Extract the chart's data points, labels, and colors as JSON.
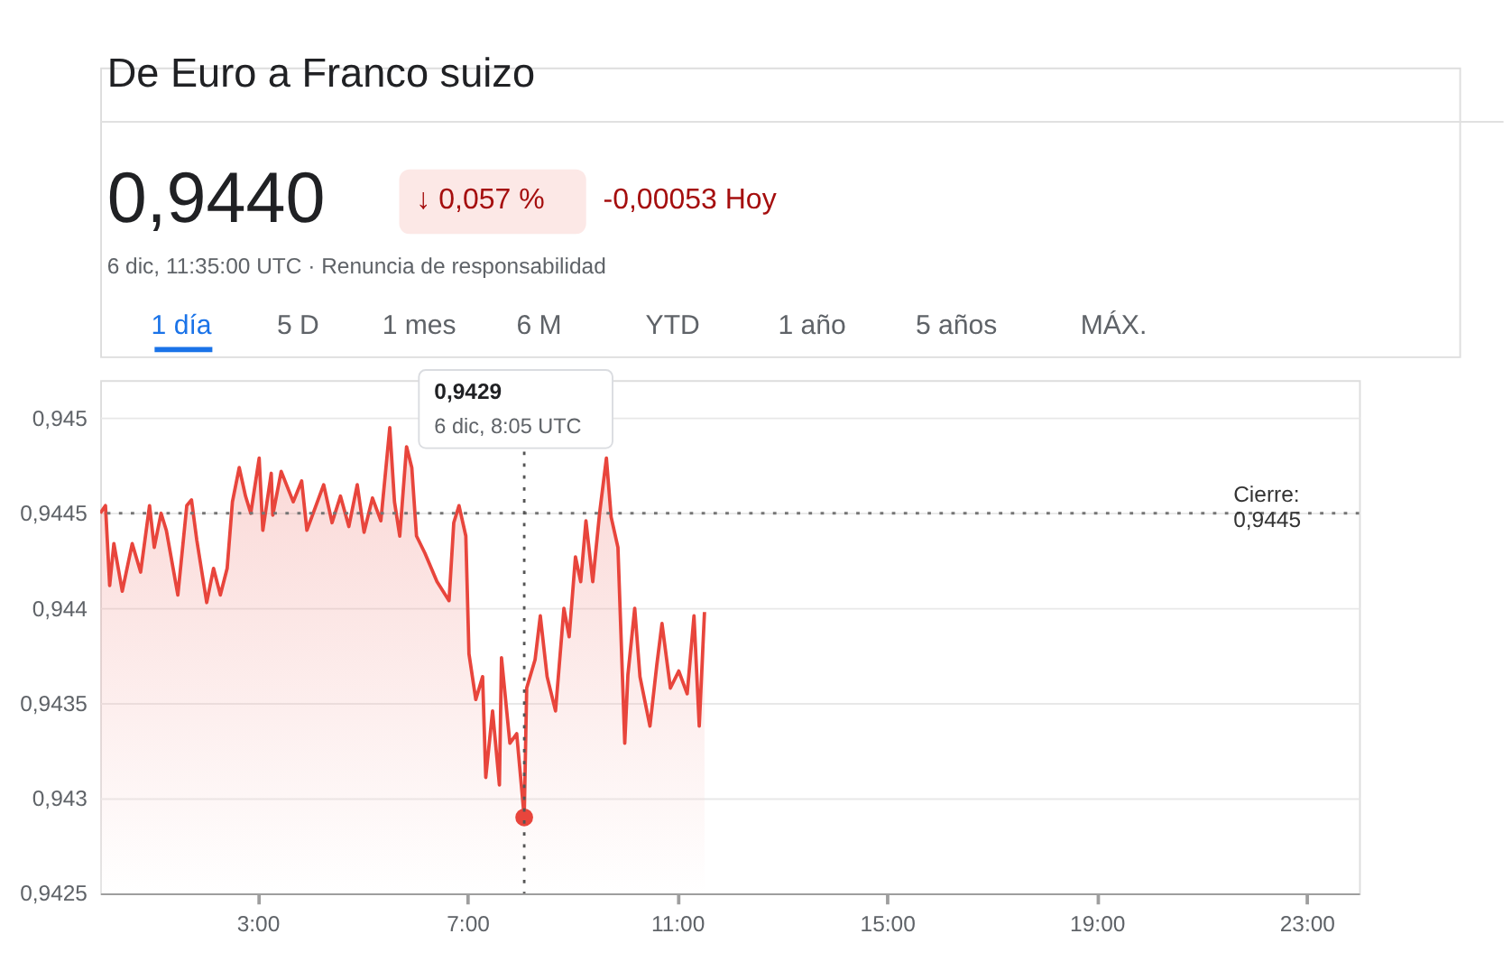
{
  "chart_data": {
    "type": "area",
    "title": "De Euro a Franco suizo",
    "annotations": [
      "0,9440",
      "↓ 0,057 %",
      "-0,00053 Hoy",
      "6 dic, 11:35:00 UTC · Renuncia de responsabilidad",
      "1 día",
      "5 D",
      "1 mes",
      "6 M",
      "YTD",
      "1 año",
      "5 años",
      "MÁX.",
      "0,9429\n6 dic, 8:05 UTC"
    ],
    "series": [
      {
        "color": "#e8453c",
        "x": [
          0,
          0.1,
          0.18,
          0.26,
          0.42,
          0.61,
          0.77,
          0.94,
          1.03,
          1.16,
          1.26,
          1.48,
          1.65,
          1.74,
          1.84,
          2.03,
          2.16,
          2.29,
          2.42,
          2.52,
          2.65,
          2.77,
          2.87,
          3.03,
          3.1,
          3.26,
          3.29,
          3.45,
          3.68,
          3.84,
          3.94,
          4.26,
          4.42,
          4.58,
          4.74,
          4.9,
          5.03,
          5.19,
          5.35,
          5.52,
          5.61,
          5.71,
          5.84,
          5.94,
          6.03,
          6.19,
          6.42,
          6.65,
          6.74,
          6.84,
          6.97,
          7.03,
          7.16,
          7.29,
          7.35,
          7.48,
          7.61,
          7.65,
          7.81,
          7.94,
          8.0833,
          8.13,
          8.29,
          8.39,
          8.52,
          8.68,
          8.84,
          8.94,
          9.06,
          9.16,
          9.26,
          9.39,
          9.52,
          9.65,
          9.74,
          9.87,
          10.0,
          10.06,
          10.19,
          10.29,
          10.48,
          10.61,
          10.71,
          10.87,
          11.03,
          11.19,
          11.32,
          11.42,
          11.52
        ],
        "values": [
          0.9445,
          0.94454,
          0.94412,
          0.94434,
          0.94409,
          0.94434,
          0.94419,
          0.94454,
          0.94432,
          0.9445,
          0.94441,
          0.94407,
          0.94454,
          0.94457,
          0.94436,
          0.94403,
          0.94421,
          0.94407,
          0.94421,
          0.94456,
          0.94474,
          0.94459,
          0.9445,
          0.94479,
          0.94441,
          0.94471,
          0.94449,
          0.94472,
          0.94456,
          0.94467,
          0.94441,
          0.94465,
          0.94445,
          0.94459,
          0.94443,
          0.94465,
          0.9444,
          0.94458,
          0.94446,
          0.94495,
          0.94456,
          0.94438,
          0.94485,
          0.94474,
          0.94438,
          0.94429,
          0.94414,
          0.94404,
          0.94445,
          0.94454,
          0.94438,
          0.94376,
          0.94352,
          0.94364,
          0.94311,
          0.94346,
          0.94307,
          0.94374,
          0.94329,
          0.94334,
          0.9429,
          0.94358,
          0.94373,
          0.94396,
          0.94364,
          0.94346,
          0.944,
          0.94385,
          0.94427,
          0.94414,
          0.94446,
          0.94414,
          0.9445,
          0.94479,
          0.94448,
          0.94432,
          0.94329,
          0.94365,
          0.944,
          0.94364,
          0.94338,
          0.9437,
          0.94392,
          0.94358,
          0.94367,
          0.94355,
          0.94396,
          0.94338,
          0.94398
        ]
      },
      {
        "type": "scatter",
        "marker": "circle",
        "color": "#e8453c",
        "x": [
          8.0833
        ],
        "values": [
          0.9429
        ]
      }
    ],
    "xlim": [
      0,
      24
    ],
    "xticks": [
      {
        "value": 3,
        "label": "3:00"
      },
      {
        "value": 7,
        "label": "7:00"
      },
      {
        "value": 11,
        "label": "11:00"
      },
      {
        "value": 15,
        "label": "15:00"
      },
      {
        "value": 19,
        "label": "19:00"
      },
      {
        "value": 23,
        "label": "23:00"
      }
    ],
    "ylim": [
      0.9425,
      0.9452
    ],
    "yticks": [
      {
        "value": 0.9425,
        "label": "0,9425"
      },
      {
        "value": 0.943,
        "label": "0,943"
      },
      {
        "value": 0.9435,
        "label": "0,9435"
      },
      {
        "value": 0.944,
        "label": "0,944"
      },
      {
        "value": 0.9445,
        "label": "0,9445"
      },
      {
        "value": 0.945,
        "label": "0,945"
      }
    ],
    "ref_lines": [
      {
        "axis": "y",
        "value": 0.9445,
        "label": "Cierre:\n0,9445",
        "color": "#757575",
        "line_style": "dotted"
      },
      {
        "axis": "x",
        "value": 8.0833,
        "color": "#555555",
        "line_style": "dotted"
      }
    ],
    "grid": "y",
    "marker": "none",
    "line_style": "solid"
  }
}
